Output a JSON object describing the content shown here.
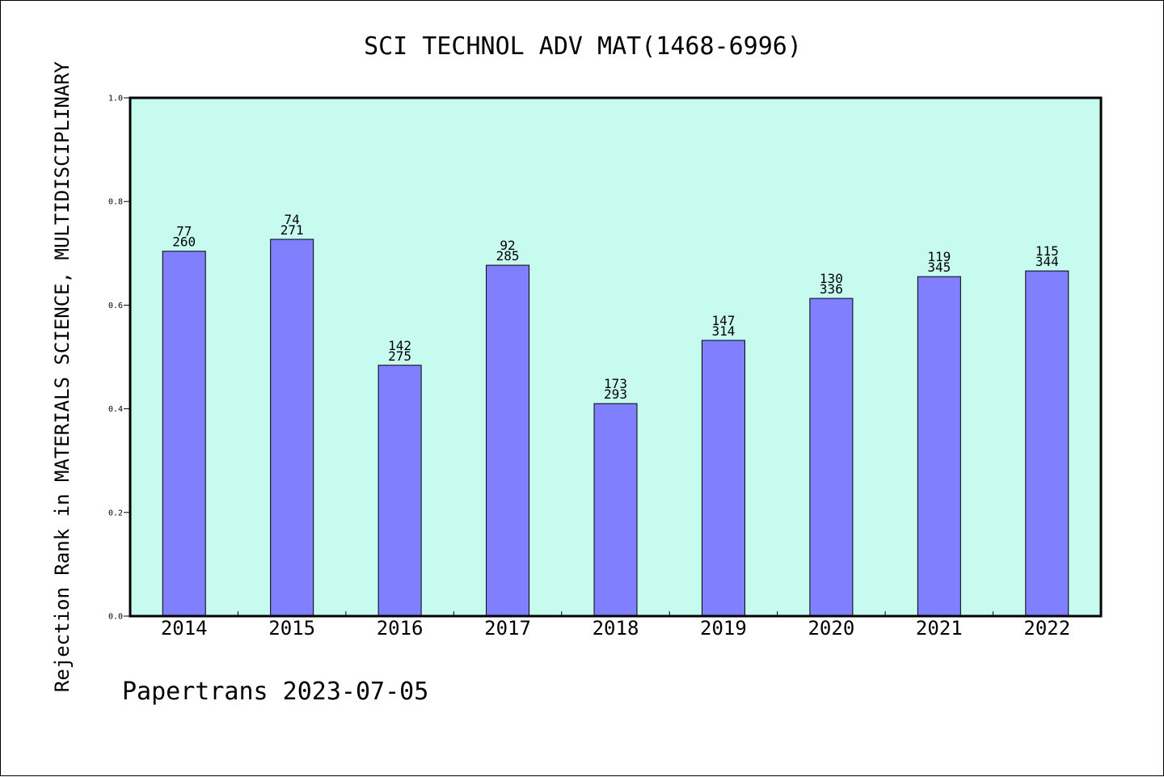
{
  "chart_data": {
    "type": "bar",
    "title": "SCI TECHNOL ADV MAT(1468-6996)",
    "xlabel": "",
    "ylabel": "Rejection Rank in MATERIALS SCIENCE, MULTIDISCIPLINARY",
    "ylim": [
      0,
      1.0
    ],
    "yticks": [
      "0.0",
      "0.2",
      "0.4",
      "0.6",
      "0.8",
      "1.0"
    ],
    "categories": [
      "2014",
      "2015",
      "2016",
      "2017",
      "2018",
      "2019",
      "2020",
      "2021",
      "2022"
    ],
    "values": [
      0.704,
      0.727,
      0.484,
      0.677,
      0.41,
      0.532,
      0.613,
      0.655,
      0.666
    ],
    "labels_top": [
      "77",
      "74",
      "142",
      "92",
      "173",
      "147",
      "130",
      "119",
      "115"
    ],
    "labels_bottom": [
      "260",
      "271",
      "275",
      "285",
      "293",
      "314",
      "336",
      "345",
      "344"
    ],
    "grid": false,
    "colors": {
      "plot_background": "#c8fbef",
      "bar": "#8080ff"
    }
  },
  "footer": {
    "text": "Papertrans 2023-07-05"
  }
}
